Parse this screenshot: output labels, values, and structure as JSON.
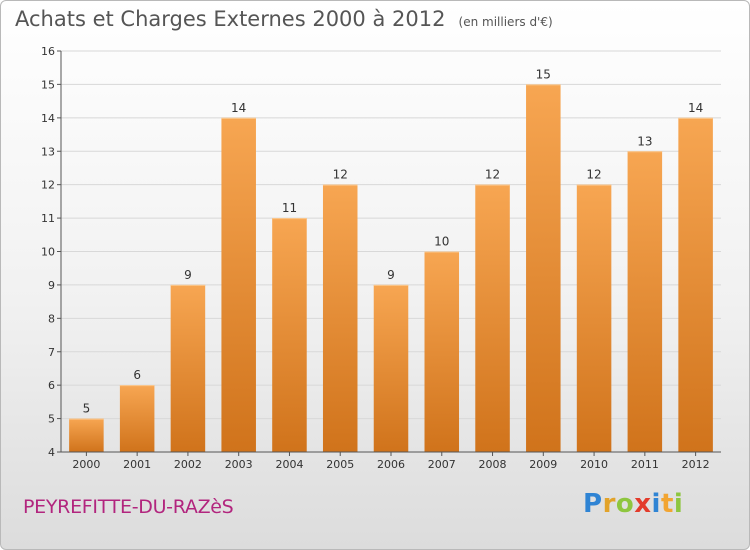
{
  "title": "Achats et Charges Externes 2000 à 2012",
  "subtitle": "(en milliers d'€)",
  "city": "PEYREFITTE-DU-RAZèS",
  "brand": {
    "letters": [
      "P",
      "r",
      "o",
      "x",
      "i",
      "t",
      "i"
    ],
    "colors": [
      "#2f84d4",
      "#e2a32a",
      "#8ec63f",
      "#e33b2b",
      "#2f84d4",
      "#f2a532",
      "#8ec63f"
    ]
  },
  "colors": {
    "bar_light": "#f7a652",
    "bar_dark": "#d0731b",
    "grid": "#d8d8d8",
    "axis_text": "#333333",
    "title_text": "#555555",
    "city_text": "#b2257e"
  },
  "chart_data": {
    "type": "bar",
    "title": "Achats et Charges Externes 2000 à 2012",
    "subtitle": "(en milliers d'€)",
    "categories": [
      "2000",
      "2001",
      "2002",
      "2003",
      "2004",
      "2005",
      "2006",
      "2007",
      "2008",
      "2009",
      "2010",
      "2011",
      "2012"
    ],
    "values": [
      5,
      6,
      9,
      14,
      11,
      12,
      9,
      10,
      12,
      15,
      12,
      13,
      14
    ],
    "data_labels": [
      "5",
      "6",
      "9",
      "14",
      "11",
      "12",
      "9",
      "10",
      "12",
      "15",
      "12",
      "13",
      "14"
    ],
    "ylim": [
      4,
      16
    ],
    "yticks": [
      4,
      5,
      6,
      7,
      8,
      9,
      10,
      11,
      12,
      13,
      14,
      15,
      16
    ],
    "xlabel": "",
    "ylabel": "",
    "grid": true,
    "legend": "none"
  }
}
